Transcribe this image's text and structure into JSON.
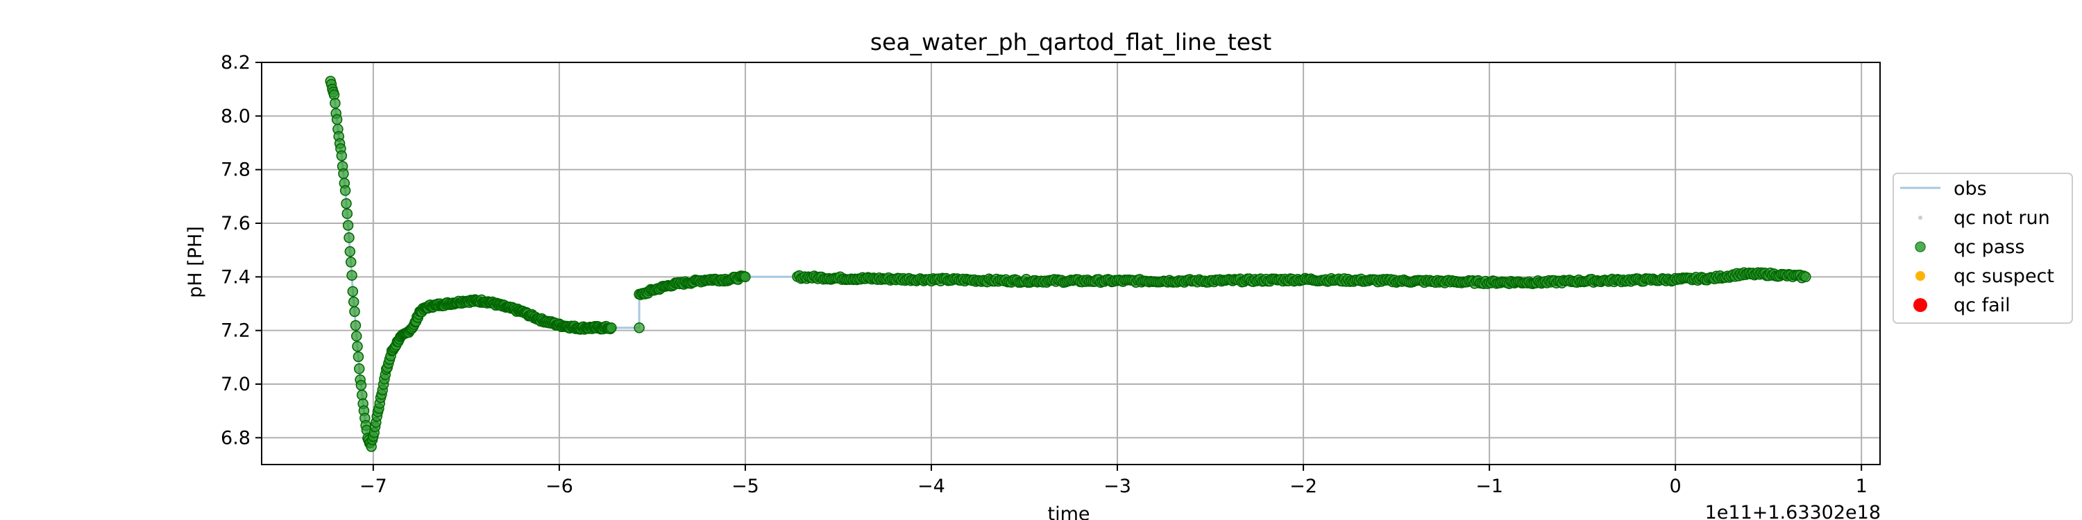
{
  "chart_data": {
    "type": "scatter",
    "title": "sea_water_ph_qartod_flat_line_test",
    "xlabel": "time",
    "ylabel": "pH [PH]",
    "offset_text": "1e11+1.63302e18",
    "xlim": [
      -7.6,
      1.1
    ],
    "ylim": [
      6.7,
      8.2
    ],
    "xticks": [
      -7,
      -6,
      -5,
      -4,
      -3,
      -2,
      -1,
      0,
      1
    ],
    "xtick_labels": [
      "−7",
      "−6",
      "−5",
      "−4",
      "−3",
      "−2",
      "−1",
      "0",
      "1"
    ],
    "yticks": [
      6.8,
      7.0,
      7.2,
      7.4,
      7.6,
      7.8,
      8.0,
      8.2
    ],
    "ytick_labels": [
      "6.8",
      "7.0",
      "7.2",
      "7.4",
      "7.6",
      "7.8",
      "8.0",
      "8.2"
    ],
    "grid": true,
    "legend": {
      "placement": "right",
      "entries": [
        {
          "label": "obs",
          "marker": "line",
          "color": "#a6c8e0"
        },
        {
          "label": "qc not run",
          "marker": "dot",
          "color": "#cccccc"
        },
        {
          "label": "qc pass",
          "marker": "dot",
          "color": "#4caf50"
        },
        {
          "label": "qc suspect",
          "marker": "dot",
          "color": "#ffb300"
        },
        {
          "label": "qc fail",
          "marker": "dot",
          "color": "#ff0000"
        }
      ]
    },
    "colors": {
      "obs": "#a6c8e0",
      "pass_fill": "#2e9a2e",
      "pass_edge": "#006400"
    },
    "series": [
      {
        "name": "qc pass",
        "keypoints": [
          [
            -7.23,
            8.13
          ],
          [
            -7.21,
            8.08
          ],
          [
            -7.19,
            7.95
          ],
          [
            -7.17,
            7.85
          ],
          [
            -7.15,
            7.72
          ],
          [
            -7.13,
            7.55
          ],
          [
            -7.11,
            7.35
          ],
          [
            -7.09,
            7.18
          ],
          [
            -7.07,
            7.02
          ],
          [
            -7.05,
            6.9
          ],
          [
            -7.03,
            6.8
          ],
          [
            -7.01,
            6.77
          ],
          [
            -6.99,
            6.84
          ],
          [
            -6.96,
            6.95
          ],
          [
            -6.93,
            7.05
          ],
          [
            -6.9,
            7.12
          ],
          [
            -6.86,
            7.17
          ],
          [
            -6.82,
            7.19
          ],
          [
            -6.78,
            7.22
          ],
          [
            -6.75,
            7.27
          ],
          [
            -6.7,
            7.29
          ],
          [
            -6.6,
            7.3
          ],
          [
            -6.5,
            7.31
          ],
          [
            -6.4,
            7.31
          ],
          [
            -6.3,
            7.29
          ],
          [
            -6.2,
            7.27
          ],
          [
            -6.1,
            7.24
          ],
          [
            -6.0,
            7.22
          ],
          [
            -5.9,
            7.21
          ],
          [
            -5.8,
            7.21
          ],
          [
            -5.72,
            7.21
          ]
        ],
        "segment2": [
          [
            -5.57,
            7.33
          ],
          [
            -5.5,
            7.35
          ],
          [
            -5.4,
            7.37
          ],
          [
            -5.3,
            7.38
          ],
          [
            -5.2,
            7.39
          ],
          [
            -5.1,
            7.39
          ],
          [
            -5.0,
            7.4
          ]
        ],
        "segment3": [
          [
            -4.72,
            7.4
          ],
          [
            -4.5,
            7.395
          ],
          [
            -4.0,
            7.39
          ],
          [
            -3.5,
            7.385
          ],
          [
            -3.0,
            7.385
          ],
          [
            -2.5,
            7.385
          ],
          [
            -2.0,
            7.39
          ],
          [
            -1.5,
            7.385
          ],
          [
            -1.0,
            7.38
          ],
          [
            -0.7,
            7.38
          ],
          [
            -0.5,
            7.385
          ],
          [
            0.0,
            7.39
          ],
          [
            0.2,
            7.395
          ],
          [
            0.35,
            7.41
          ],
          [
            0.5,
            7.41
          ],
          [
            0.6,
            7.405
          ],
          [
            0.7,
            7.4
          ]
        ],
        "isolated": [
          [
            -5.57,
            7.21
          ]
        ]
      }
    ]
  }
}
